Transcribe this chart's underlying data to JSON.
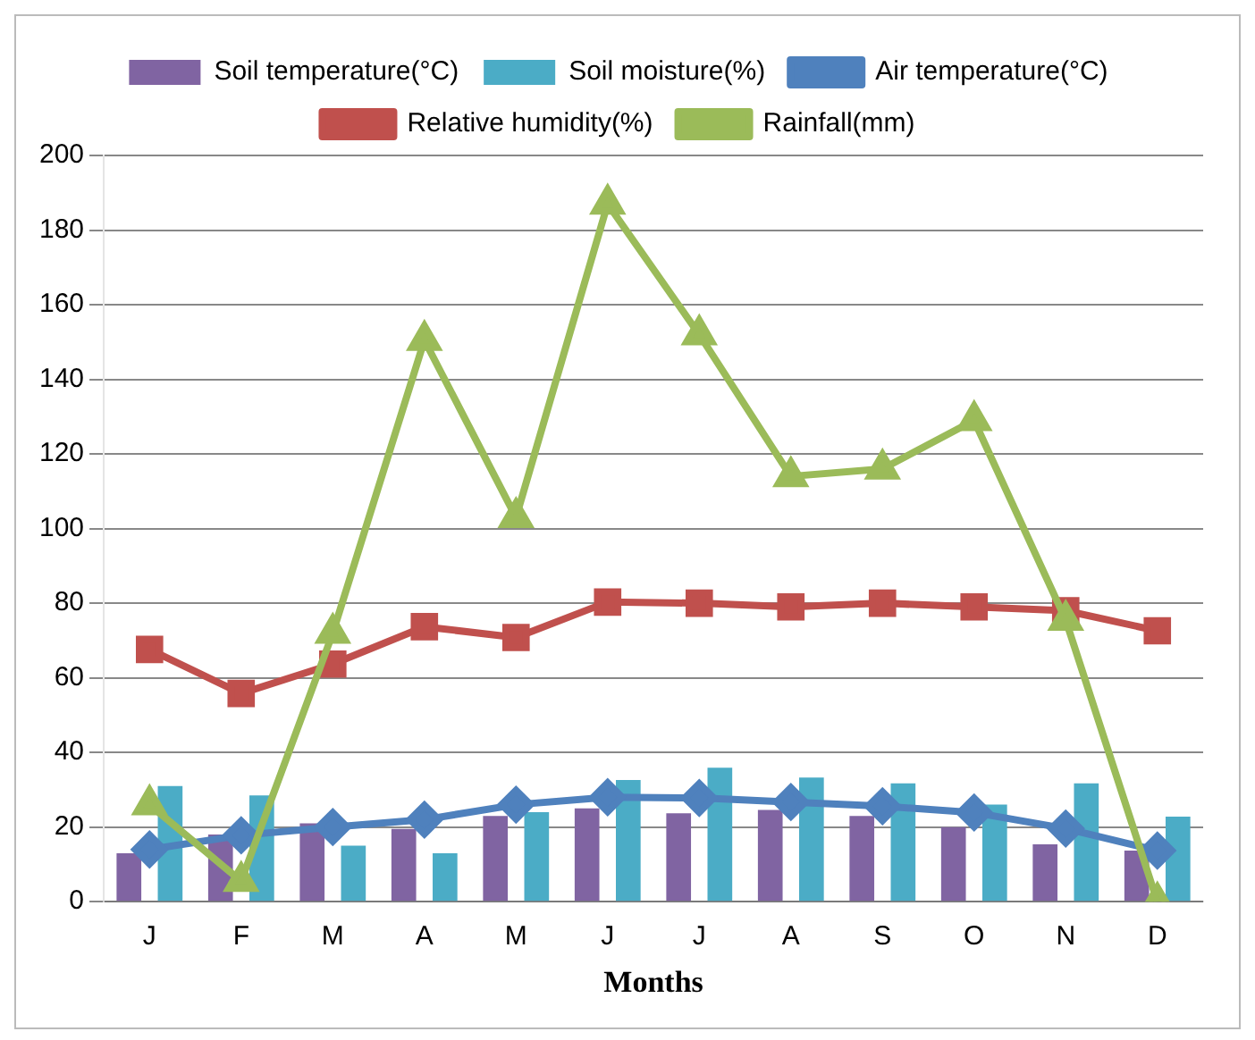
{
  "chart_data": {
    "type": "bar",
    "xlabel": "Months",
    "categories": [
      "J",
      "F",
      "M",
      "A",
      "M",
      "J",
      "J",
      "A",
      "S",
      "O",
      "N",
      "D"
    ],
    "ylim": [
      0,
      200
    ],
    "yticks": [
      0,
      20,
      40,
      60,
      80,
      100,
      120,
      140,
      160,
      180,
      200
    ],
    "grid": "y",
    "legend": "top",
    "series": [
      {
        "name": "Soil temperature(°C)",
        "color": "#8064a2",
        "values": [
          13,
          18,
          21,
          19.5,
          23,
          25,
          23.7,
          24.6,
          23,
          20,
          15.4,
          13.7
        ]
      },
      {
        "name": "Soil moisture(%)",
        "color": "#4bacc6",
        "values": [
          31,
          28.5,
          15,
          13,
          24,
          32.6,
          35.9,
          33.3,
          31.7,
          26,
          31.7,
          22.8
        ]
      },
      {
        "name": "Air temperature(°C)",
        "type": "line",
        "color": "#4f81bd",
        "marker": "diamond",
        "values": [
          14,
          17.8,
          20,
          22,
          26,
          28,
          27.8,
          26.7,
          25.6,
          23.9,
          19.6,
          13.7
        ]
      },
      {
        "name": "Relative humidity(%)",
        "type": "line",
        "color": "#c0504d",
        "marker": "square",
        "values": [
          67.6,
          55.8,
          63.7,
          73.7,
          70.8,
          80.3,
          80,
          79,
          80,
          79,
          78,
          72.6
        ]
      },
      {
        "name": "Rainfall(mm)",
        "type": "line",
        "color": "#9bbb59",
        "marker": "triangle",
        "values": [
          26,
          5.5,
          72,
          150.5,
          103,
          187,
          152,
          114,
          116,
          129,
          75.5,
          0
        ]
      }
    ]
  }
}
